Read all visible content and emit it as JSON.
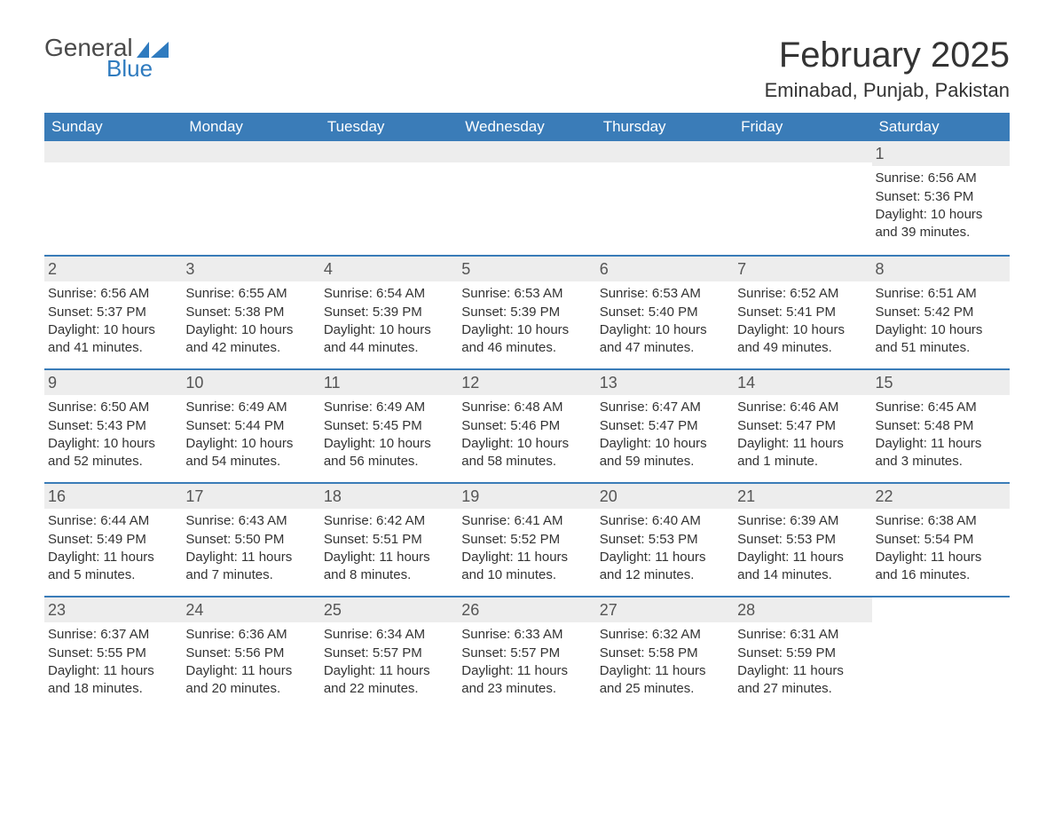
{
  "logo": {
    "text_general": "General",
    "text_blue": "Blue",
    "flag_color": "#2f7bbf"
  },
  "title": "February 2025",
  "location": "Eminabad, Punjab, Pakistan",
  "colors": {
    "header_bg": "#3a7cb8",
    "header_text": "#ffffff",
    "row_divider": "#3a7cb8",
    "daynum_bg": "#ededed",
    "body_text": "#333333",
    "logo_general": "#4a4a4a",
    "logo_blue": "#2f7bbf",
    "page_bg": "#ffffff"
  },
  "typography": {
    "title_fontsize": 40,
    "location_fontsize": 22,
    "dow_fontsize": 17,
    "daynum_fontsize": 18,
    "detail_fontsize": 15,
    "font_family": "Arial"
  },
  "layout": {
    "type": "calendar",
    "columns": 7,
    "rows": 5,
    "first_day_column": 6
  },
  "days_of_week": [
    "Sunday",
    "Monday",
    "Tuesday",
    "Wednesday",
    "Thursday",
    "Friday",
    "Saturday"
  ],
  "weeks": [
    [
      null,
      null,
      null,
      null,
      null,
      null,
      {
        "num": "1",
        "sunrise": "Sunrise: 6:56 AM",
        "sunset": "Sunset: 5:36 PM",
        "daylight": "Daylight: 10 hours and 39 minutes."
      }
    ],
    [
      {
        "num": "2",
        "sunrise": "Sunrise: 6:56 AM",
        "sunset": "Sunset: 5:37 PM",
        "daylight": "Daylight: 10 hours and 41 minutes."
      },
      {
        "num": "3",
        "sunrise": "Sunrise: 6:55 AM",
        "sunset": "Sunset: 5:38 PM",
        "daylight": "Daylight: 10 hours and 42 minutes."
      },
      {
        "num": "4",
        "sunrise": "Sunrise: 6:54 AM",
        "sunset": "Sunset: 5:39 PM",
        "daylight": "Daylight: 10 hours and 44 minutes."
      },
      {
        "num": "5",
        "sunrise": "Sunrise: 6:53 AM",
        "sunset": "Sunset: 5:39 PM",
        "daylight": "Daylight: 10 hours and 46 minutes."
      },
      {
        "num": "6",
        "sunrise": "Sunrise: 6:53 AM",
        "sunset": "Sunset: 5:40 PM",
        "daylight": "Daylight: 10 hours and 47 minutes."
      },
      {
        "num": "7",
        "sunrise": "Sunrise: 6:52 AM",
        "sunset": "Sunset: 5:41 PM",
        "daylight": "Daylight: 10 hours and 49 minutes."
      },
      {
        "num": "8",
        "sunrise": "Sunrise: 6:51 AM",
        "sunset": "Sunset: 5:42 PM",
        "daylight": "Daylight: 10 hours and 51 minutes."
      }
    ],
    [
      {
        "num": "9",
        "sunrise": "Sunrise: 6:50 AM",
        "sunset": "Sunset: 5:43 PM",
        "daylight": "Daylight: 10 hours and 52 minutes."
      },
      {
        "num": "10",
        "sunrise": "Sunrise: 6:49 AM",
        "sunset": "Sunset: 5:44 PM",
        "daylight": "Daylight: 10 hours and 54 minutes."
      },
      {
        "num": "11",
        "sunrise": "Sunrise: 6:49 AM",
        "sunset": "Sunset: 5:45 PM",
        "daylight": "Daylight: 10 hours and 56 minutes."
      },
      {
        "num": "12",
        "sunrise": "Sunrise: 6:48 AM",
        "sunset": "Sunset: 5:46 PM",
        "daylight": "Daylight: 10 hours and 58 minutes."
      },
      {
        "num": "13",
        "sunrise": "Sunrise: 6:47 AM",
        "sunset": "Sunset: 5:47 PM",
        "daylight": "Daylight: 10 hours and 59 minutes."
      },
      {
        "num": "14",
        "sunrise": "Sunrise: 6:46 AM",
        "sunset": "Sunset: 5:47 PM",
        "daylight": "Daylight: 11 hours and 1 minute."
      },
      {
        "num": "15",
        "sunrise": "Sunrise: 6:45 AM",
        "sunset": "Sunset: 5:48 PM",
        "daylight": "Daylight: 11 hours and 3 minutes."
      }
    ],
    [
      {
        "num": "16",
        "sunrise": "Sunrise: 6:44 AM",
        "sunset": "Sunset: 5:49 PM",
        "daylight": "Daylight: 11 hours and 5 minutes."
      },
      {
        "num": "17",
        "sunrise": "Sunrise: 6:43 AM",
        "sunset": "Sunset: 5:50 PM",
        "daylight": "Daylight: 11 hours and 7 minutes."
      },
      {
        "num": "18",
        "sunrise": "Sunrise: 6:42 AM",
        "sunset": "Sunset: 5:51 PM",
        "daylight": "Daylight: 11 hours and 8 minutes."
      },
      {
        "num": "19",
        "sunrise": "Sunrise: 6:41 AM",
        "sunset": "Sunset: 5:52 PM",
        "daylight": "Daylight: 11 hours and 10 minutes."
      },
      {
        "num": "20",
        "sunrise": "Sunrise: 6:40 AM",
        "sunset": "Sunset: 5:53 PM",
        "daylight": "Daylight: 11 hours and 12 minutes."
      },
      {
        "num": "21",
        "sunrise": "Sunrise: 6:39 AM",
        "sunset": "Sunset: 5:53 PM",
        "daylight": "Daylight: 11 hours and 14 minutes."
      },
      {
        "num": "22",
        "sunrise": "Sunrise: 6:38 AM",
        "sunset": "Sunset: 5:54 PM",
        "daylight": "Daylight: 11 hours and 16 minutes."
      }
    ],
    [
      {
        "num": "23",
        "sunrise": "Sunrise: 6:37 AM",
        "sunset": "Sunset: 5:55 PM",
        "daylight": "Daylight: 11 hours and 18 minutes."
      },
      {
        "num": "24",
        "sunrise": "Sunrise: 6:36 AM",
        "sunset": "Sunset: 5:56 PM",
        "daylight": "Daylight: 11 hours and 20 minutes."
      },
      {
        "num": "25",
        "sunrise": "Sunrise: 6:34 AM",
        "sunset": "Sunset: 5:57 PM",
        "daylight": "Daylight: 11 hours and 22 minutes."
      },
      {
        "num": "26",
        "sunrise": "Sunrise: 6:33 AM",
        "sunset": "Sunset: 5:57 PM",
        "daylight": "Daylight: 11 hours and 23 minutes."
      },
      {
        "num": "27",
        "sunrise": "Sunrise: 6:32 AM",
        "sunset": "Sunset: 5:58 PM",
        "daylight": "Daylight: 11 hours and 25 minutes."
      },
      {
        "num": "28",
        "sunrise": "Sunrise: 6:31 AM",
        "sunset": "Sunset: 5:59 PM",
        "daylight": "Daylight: 11 hours and 27 minutes."
      },
      null
    ]
  ]
}
